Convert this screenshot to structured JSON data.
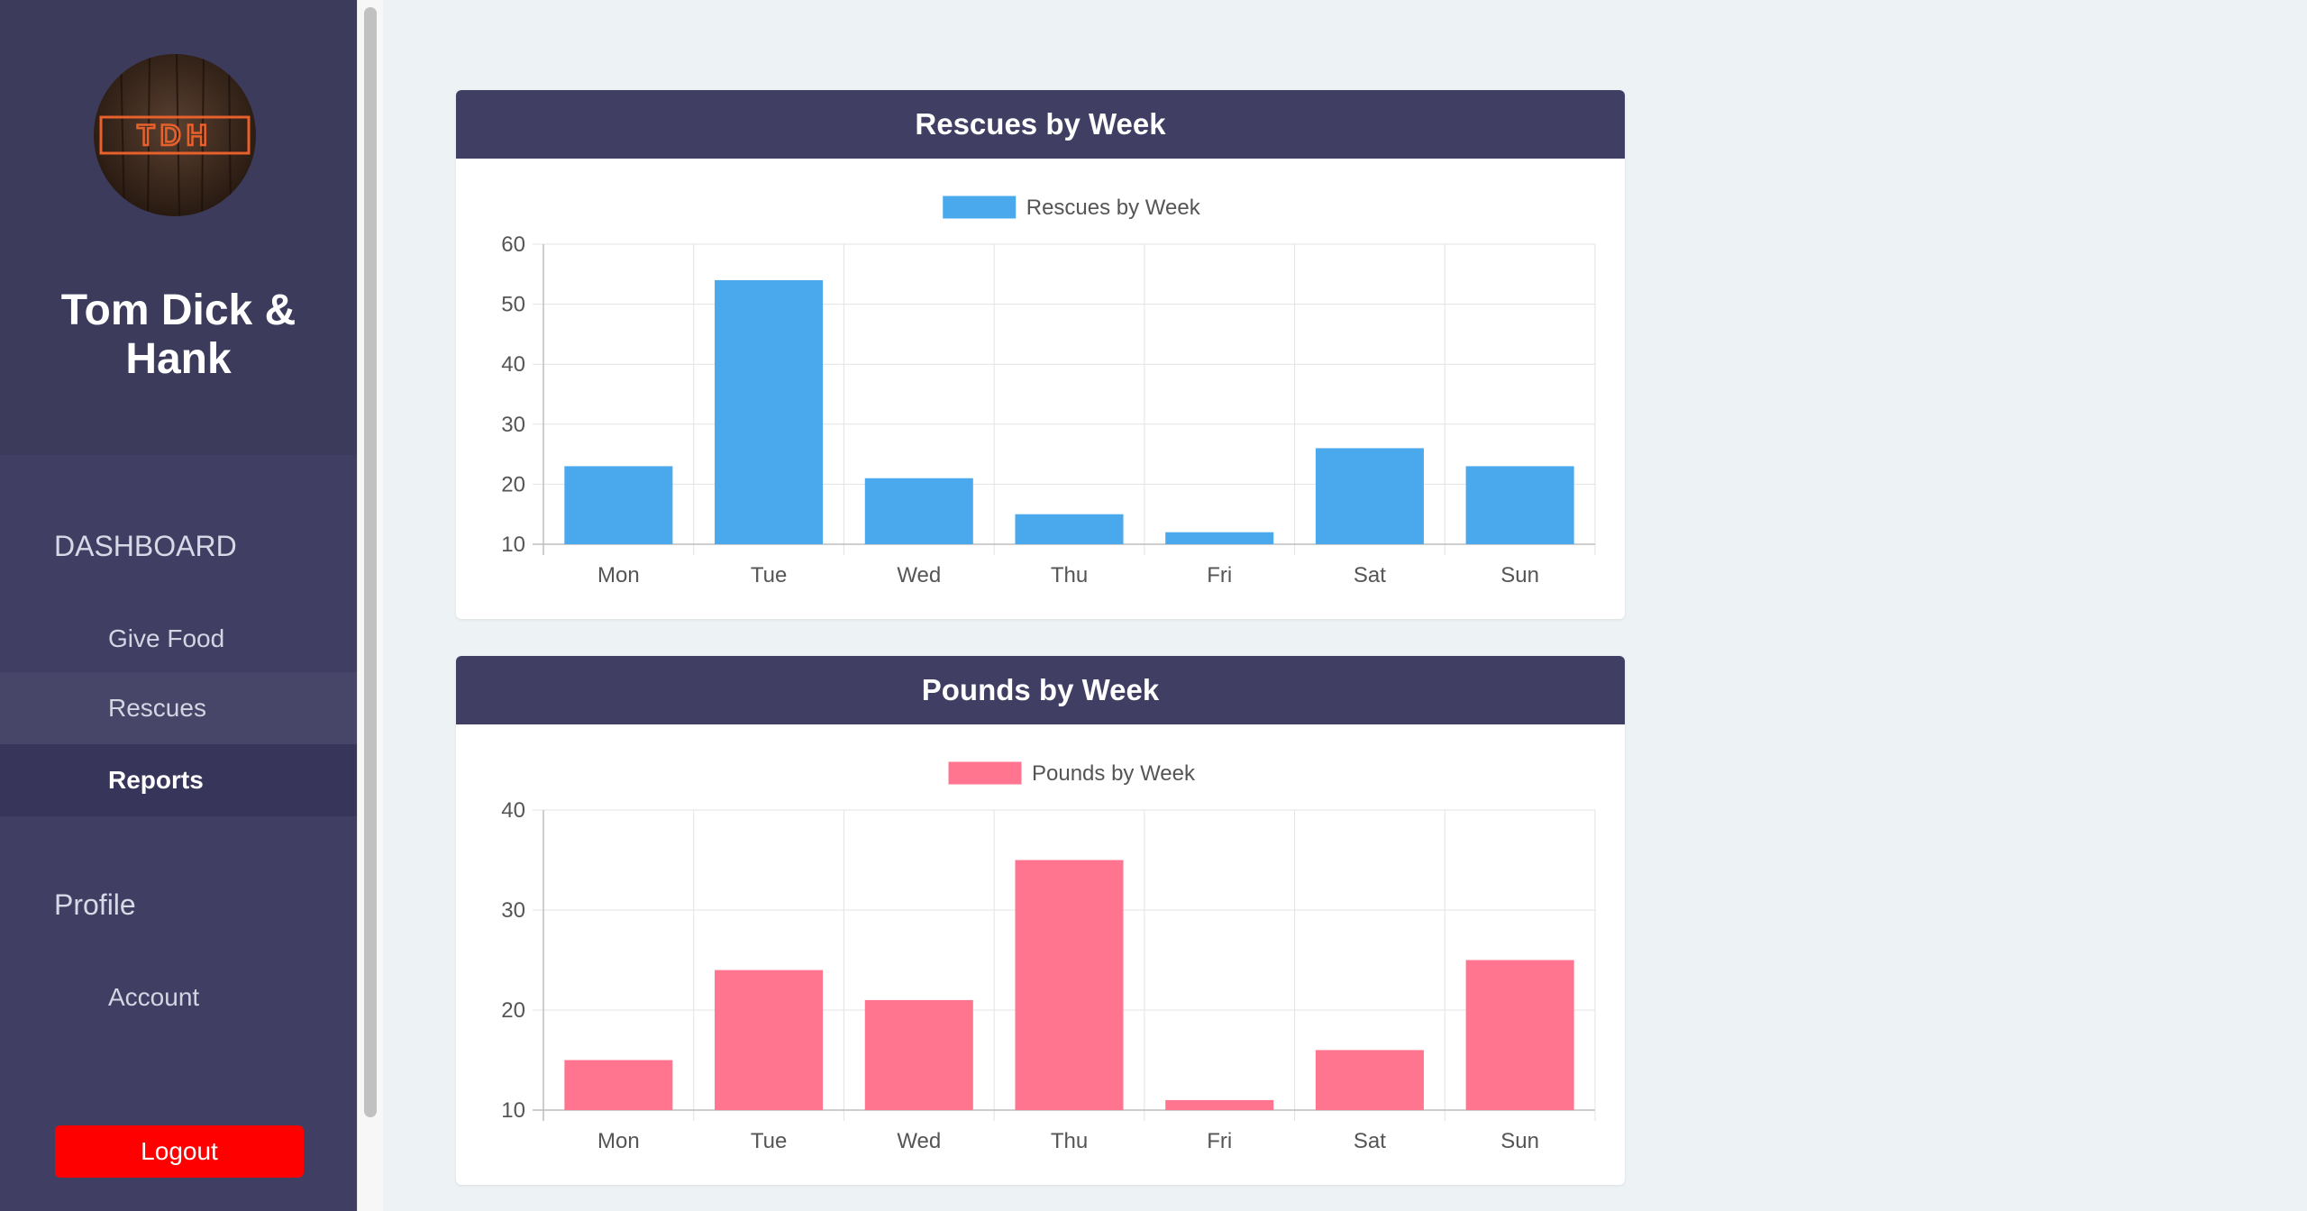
{
  "brand": {
    "name": "Tom Dick & Hank",
    "logo_text": "TDH"
  },
  "nav": {
    "dashboard_label": "DASHBOARD",
    "dashboard_items": [
      {
        "label": "Give Food"
      },
      {
        "label": "Rescues"
      },
      {
        "label": "Reports"
      }
    ],
    "profile_label": "Profile",
    "profile_items": [
      {
        "label": "Account"
      }
    ],
    "logout_label": "Logout"
  },
  "colors": {
    "sidebar": "#403f63",
    "rescues_bar": "#4aa8ec",
    "pounds_bar": "#ff7590",
    "logout": "#ff0000"
  },
  "cards": [
    {
      "title": "Rescues by Week"
    },
    {
      "title": "Pounds by Week"
    }
  ],
  "chart_data": [
    {
      "type": "bar",
      "title": "Rescues by Week",
      "categories": [
        "Mon",
        "Tue",
        "Wed",
        "Thu",
        "Fri",
        "Sat",
        "Sun"
      ],
      "series": [
        {
          "name": "Rescues by Week",
          "values": [
            23,
            54,
            21,
            15,
            12,
            26,
            23
          ],
          "color": "#4aa8ec"
        }
      ],
      "ylim": [
        10,
        60
      ],
      "yticks": [
        10,
        20,
        30,
        40,
        50,
        60
      ],
      "grid": true,
      "legend": "top-center"
    },
    {
      "type": "bar",
      "title": "Pounds by Week",
      "categories": [
        "Mon",
        "Tue",
        "Wed",
        "Thu",
        "Fri",
        "Sat",
        "Sun"
      ],
      "series": [
        {
          "name": "Pounds by Week",
          "values": [
            15,
            24,
            21,
            35,
            11,
            16,
            25
          ],
          "color": "#ff7590"
        }
      ],
      "ylim": [
        10,
        40
      ],
      "yticks": [
        10,
        20,
        30,
        40
      ],
      "grid": true,
      "legend": "top-center"
    }
  ]
}
